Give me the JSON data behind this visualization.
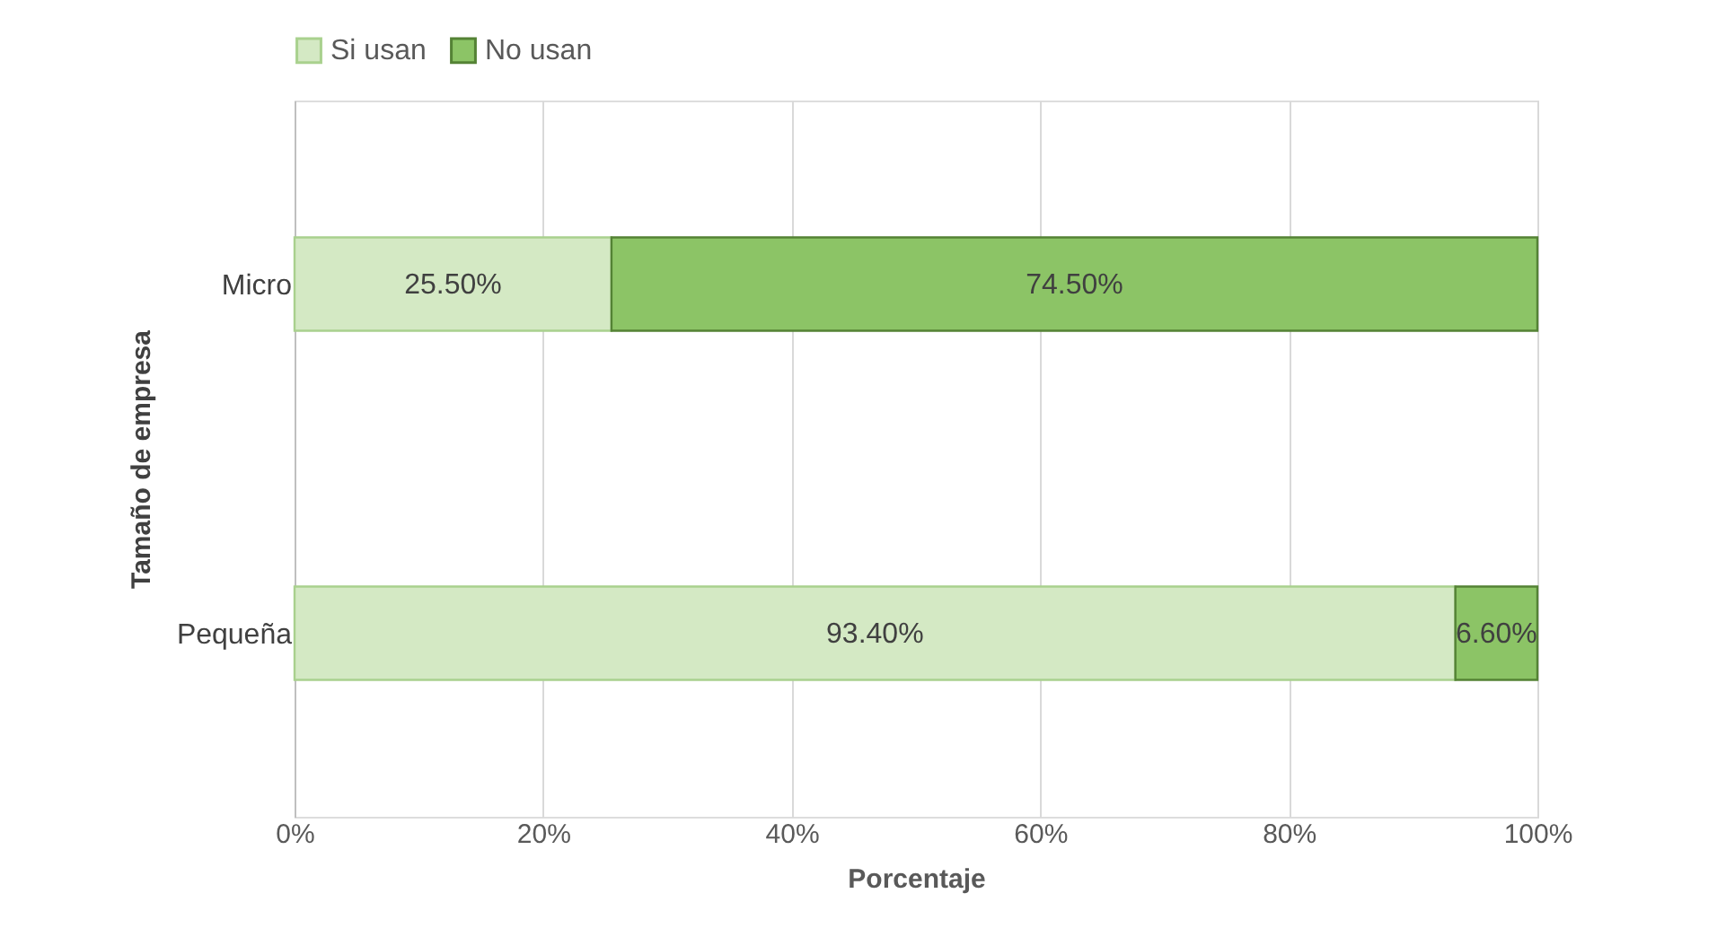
{
  "chart_data": {
    "type": "bar",
    "orientation": "horizontal",
    "stacked": true,
    "xlabel": "Porcentaje",
    "ylabel": "Tamaño de empresa",
    "categories": [
      "Micro",
      "Pequeña"
    ],
    "series": [
      {
        "name": "Si usan",
        "color": "#d4e9c4",
        "values": [
          25.5,
          93.4
        ],
        "value_labels": [
          "25.50%",
          "93.40%"
        ]
      },
      {
        "name": "No usan",
        "color": "#8cc466",
        "values": [
          74.5,
          6.6
        ],
        "value_labels": [
          "74.50%",
          "6.60%"
        ]
      }
    ],
    "xlim": [
      0,
      100
    ],
    "xticks": [
      {
        "value": 0,
        "label": "0%"
      },
      {
        "value": 20,
        "label": "20%"
      },
      {
        "value": 40,
        "label": "40%"
      },
      {
        "value": 60,
        "label": "60%"
      },
      {
        "value": 80,
        "label": "80%"
      },
      {
        "value": 100,
        "label": "100%"
      }
    ],
    "grid": "x",
    "legend": "top"
  }
}
